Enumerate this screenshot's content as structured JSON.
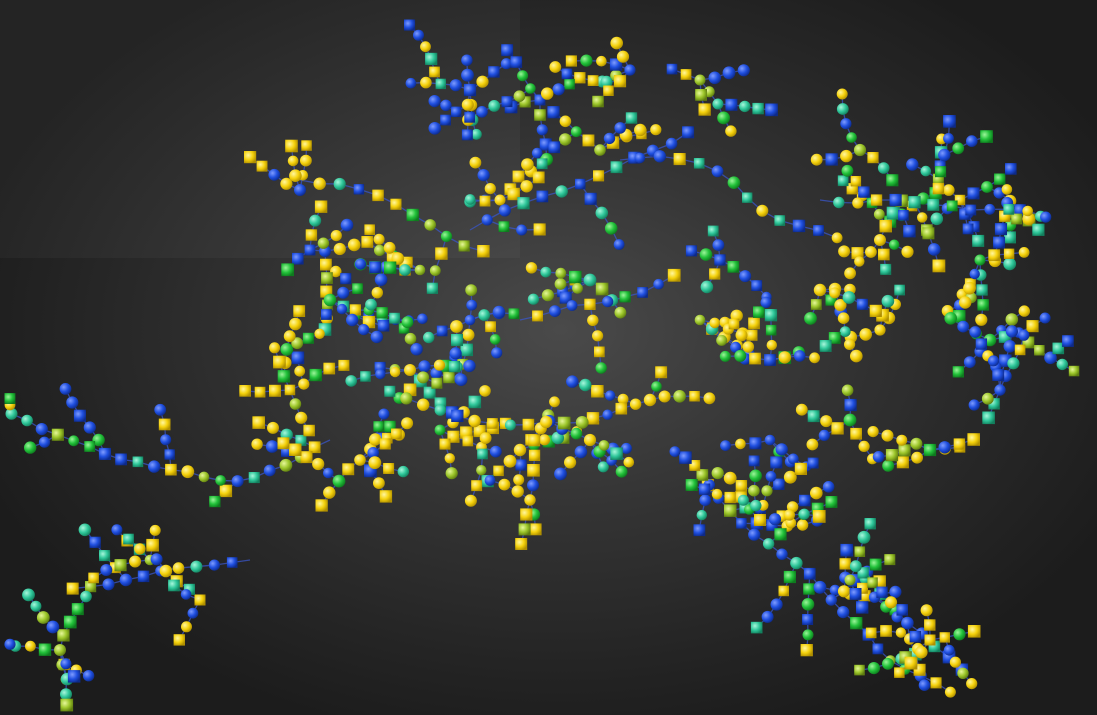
{
  "visualization": {
    "type": "network-graph",
    "node_shapes": [
      "circle",
      "square"
    ],
    "palette": {
      "background": "#1e1e1e",
      "edge": "#3a56c8",
      "blue": "#1f4fe0",
      "yellow": "#f5d20c",
      "green": "#22c23a",
      "teal": "#2fc79a",
      "olive": "#9cc62a"
    },
    "node_color_categories": [
      "blue",
      "yellow",
      "green",
      "teal",
      "olive"
    ]
  }
}
